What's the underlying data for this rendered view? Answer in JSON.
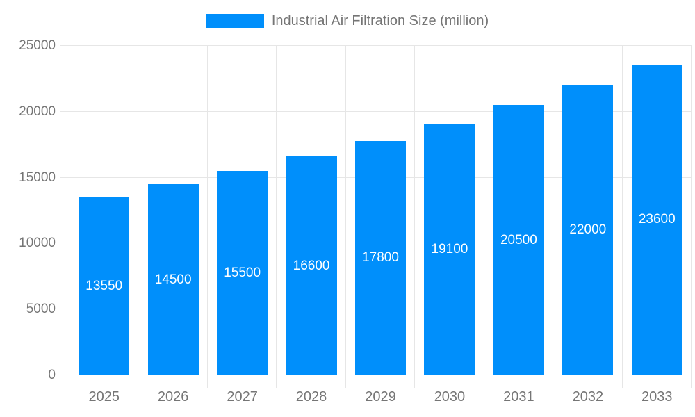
{
  "legend": {
    "label": "Industrial Air Filtration Size (million)"
  },
  "chart_data": {
    "type": "bar",
    "title": "Industrial Air Filtration Size (million)",
    "categories": [
      "2025",
      "2026",
      "2027",
      "2028",
      "2029",
      "2030",
      "2031",
      "2032",
      "2033"
    ],
    "values": [
      13550,
      14500,
      15500,
      16600,
      17800,
      19100,
      20500,
      22000,
      23600
    ],
    "series": [
      {
        "name": "Industrial Air Filtration Size (million)",
        "values": [
          13550,
          14500,
          15500,
          16600,
          17800,
          19100,
          20500,
          22000,
          23600
        ]
      }
    ],
    "xlabel": "",
    "ylabel": "",
    "ylim": [
      0,
      25000
    ],
    "yticks": [
      0,
      5000,
      10000,
      15000,
      20000,
      25000
    ],
    "grid": true,
    "legend_position": "top",
    "data_labels_position": "inside-center",
    "colors": {
      "bar": "#008ffb",
      "grid": "#e6e6e6",
      "axis": "#9e9e9e",
      "tick_text": "#757575",
      "bar_label_text": "#ffffff",
      "background": "#ffffff"
    }
  }
}
